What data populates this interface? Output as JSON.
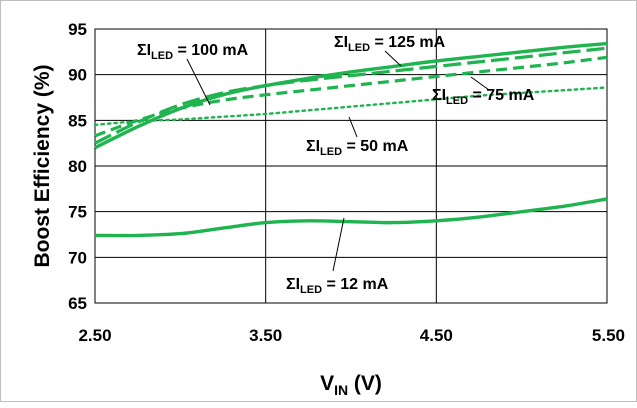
{
  "chart_data": {
    "type": "line",
    "title": "",
    "xlabel": {
      "main": "V",
      "sub": "IN",
      "unit": " (V)"
    },
    "ylabel": "Boost Efficiency (%)",
    "xlim": [
      2.5,
      5.5
    ],
    "ylim": [
      65,
      95
    ],
    "x_ticks": [
      2.5,
      3.5,
      4.5,
      5.5
    ],
    "x_tick_labels": [
      "2.50",
      "3.50",
      "4.50",
      "5.50"
    ],
    "y_ticks": [
      65,
      70,
      75,
      80,
      85,
      90,
      95
    ],
    "y_tick_labels": [
      "65",
      "70",
      "75",
      "80",
      "85",
      "90",
      "95"
    ],
    "grid": true,
    "legend": "none",
    "line_color": "#1fb44f",
    "series": [
      {
        "name": "ΣILED = 125 mA",
        "style": "solid",
        "x": [
          2.5,
          2.75,
          3.0,
          3.25,
          3.5,
          3.75,
          4.0,
          4.25,
          4.5,
          4.75,
          5.0,
          5.25,
          5.5
        ],
        "y": [
          82.0,
          84.3,
          86.3,
          87.8,
          88.8,
          89.6,
          90.3,
          90.9,
          91.5,
          92.0,
          92.5,
          93.0,
          93.4
        ]
      },
      {
        "name": "ΣILED = 100 mA",
        "style": "long-dash",
        "x": [
          2.5,
          2.75,
          3.0,
          3.25,
          3.5,
          3.75,
          4.0,
          4.25,
          4.5,
          4.75,
          5.0,
          5.25,
          5.5
        ],
        "y": [
          82.5,
          84.8,
          86.7,
          88.0,
          88.8,
          89.4,
          89.9,
          90.4,
          90.9,
          91.4,
          91.9,
          92.4,
          92.9
        ]
      },
      {
        "name": "ΣILED = 75 mA",
        "style": "dash",
        "x": [
          2.5,
          2.75,
          3.0,
          3.25,
          3.5,
          3.75,
          4.0,
          4.25,
          4.5,
          4.75,
          5.0,
          5.25,
          5.5
        ],
        "y": [
          83.3,
          85.0,
          86.3,
          87.2,
          87.8,
          88.3,
          88.8,
          89.3,
          89.8,
          90.3,
          90.8,
          91.3,
          91.9
        ]
      },
      {
        "name": "ΣILED = 50 mA",
        "style": "dot",
        "x": [
          2.5,
          2.75,
          3.0,
          3.25,
          3.5,
          3.75,
          4.0,
          4.25,
          4.5,
          4.75,
          5.0,
          5.25,
          5.5
        ],
        "y": [
          84.5,
          84.9,
          85.1,
          85.4,
          85.7,
          86.1,
          86.5,
          86.9,
          87.3,
          87.7,
          88.0,
          88.3,
          88.6
        ]
      },
      {
        "name": "ΣILED = 12 mA",
        "style": "solid",
        "x": [
          2.5,
          2.75,
          3.0,
          3.25,
          3.5,
          3.75,
          4.0,
          4.25,
          4.5,
          4.75,
          5.0,
          5.25,
          5.5
        ],
        "y": [
          72.4,
          72.4,
          72.6,
          73.2,
          73.8,
          74.0,
          73.9,
          73.8,
          74.0,
          74.4,
          75.0,
          75.6,
          76.4
        ]
      }
    ],
    "annotations": [
      {
        "pre": "ΣI",
        "sub": "LED",
        "post": " = 100 mA"
      },
      {
        "pre": "ΣI",
        "sub": "LED",
        "post": " = 125 mA"
      },
      {
        "pre": "ΣI",
        "sub": "LED",
        "post": " = 75 mA"
      },
      {
        "pre": "ΣI",
        "sub": "LED",
        "post": " = 50 mA"
      },
      {
        "pre": "ΣI",
        "sub": "LED",
        "post": " = 12 mA"
      }
    ]
  }
}
